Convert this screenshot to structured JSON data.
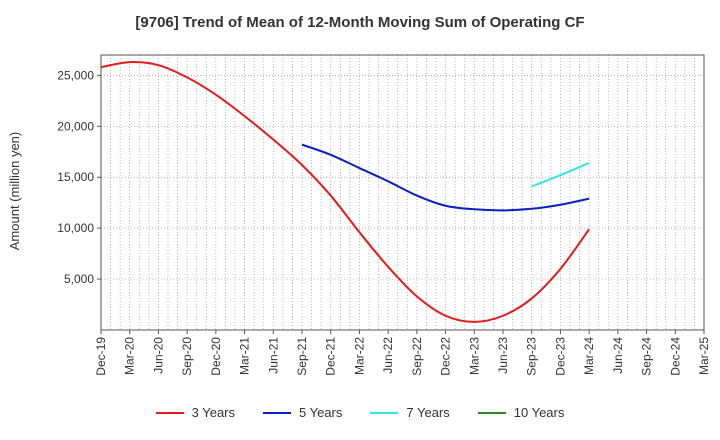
{
  "chart_data": {
    "type": "line",
    "title": "[9706]  Trend of Mean of 12-Month Moving Sum of Operating CF",
    "ylabel": "Amount (million yen)",
    "xlabel": "",
    "ylim": [
      0,
      27000
    ],
    "yticks": [
      5000,
      10000,
      15000,
      20000,
      25000
    ],
    "ytick_labels": [
      "5,000",
      "10,000",
      "15,000",
      "20,000",
      "25,000"
    ],
    "categories": [
      "Dec-19",
      "Mar-20",
      "Jun-20",
      "Sep-20",
      "Dec-20",
      "Mar-21",
      "Jun-21",
      "Sep-21",
      "Dec-21",
      "Mar-22",
      "Jun-22",
      "Sep-22",
      "Dec-22",
      "Mar-23",
      "Jun-23",
      "Sep-23",
      "Dec-23",
      "Mar-24",
      "Jun-24",
      "Sep-24",
      "Dec-24",
      "Mar-25"
    ],
    "series": [
      {
        "name": "3 Years",
        "color": "#e41a1c",
        "values": [
          25800,
          26300,
          26000,
          24800,
          23100,
          21000,
          18700,
          16200,
          13200,
          9600,
          6200,
          3300,
          1400,
          800,
          1400,
          3100,
          6000,
          9900,
          null,
          null,
          null,
          null
        ]
      },
      {
        "name": "5 Years",
        "color": "#0a1fc8",
        "values": [
          null,
          null,
          null,
          null,
          null,
          null,
          null,
          18200,
          17200,
          15900,
          14600,
          13200,
          12200,
          11850,
          11750,
          11900,
          12300,
          12900,
          null,
          null,
          null,
          null
        ]
      },
      {
        "name": "7 Years",
        "color": "#33e6e6",
        "values": [
          null,
          null,
          null,
          null,
          null,
          null,
          null,
          null,
          null,
          null,
          null,
          null,
          null,
          null,
          null,
          14100,
          15200,
          16400,
          null,
          null,
          null,
          null
        ]
      },
      {
        "name": "10 Years",
        "color": "#2e8b22",
        "values": [
          null,
          null,
          null,
          null,
          null,
          null,
          null,
          null,
          null,
          null,
          null,
          null,
          null,
          null,
          null,
          null,
          null,
          null,
          null,
          null,
          null,
          null
        ]
      }
    ]
  }
}
